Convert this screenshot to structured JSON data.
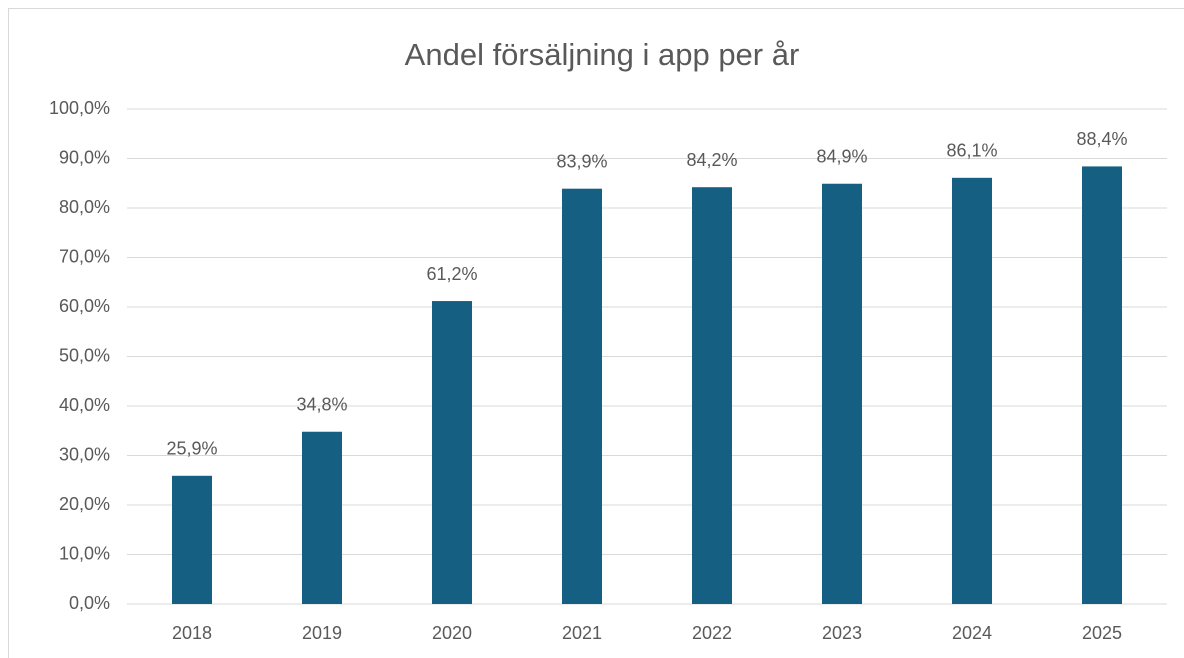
{
  "chart_data": {
    "type": "bar",
    "title": "Andel försäljning i app per år",
    "categories": [
      "2018",
      "2019",
      "2020",
      "2021",
      "2022",
      "2023",
      "2024",
      "2025"
    ],
    "values": [
      25.9,
      34.8,
      61.2,
      83.9,
      84.2,
      84.9,
      86.1,
      88.4
    ],
    "value_labels": [
      "25,9%",
      "34,8%",
      "61,2%",
      "83,9%",
      "84,2%",
      "84,9%",
      "86,1%",
      "88,4%"
    ],
    "color": "#156082",
    "ylim": [
      0,
      100
    ],
    "yticks": [
      {
        "value": 0,
        "label": "0,0%"
      },
      {
        "value": 10,
        "label": "10,0%"
      },
      {
        "value": 20,
        "label": "20,0%"
      },
      {
        "value": 30,
        "label": "30,0%"
      },
      {
        "value": 40,
        "label": "40,0%"
      },
      {
        "value": 50,
        "label": "50,0%"
      },
      {
        "value": 60,
        "label": "60,0%"
      },
      {
        "value": 70,
        "label": "70,0%"
      },
      {
        "value": 80,
        "label": "80,0%"
      },
      {
        "value": 90,
        "label": "90,0%"
      },
      {
        "value": 100,
        "label": "100,0%"
      }
    ],
    "grid": true
  }
}
